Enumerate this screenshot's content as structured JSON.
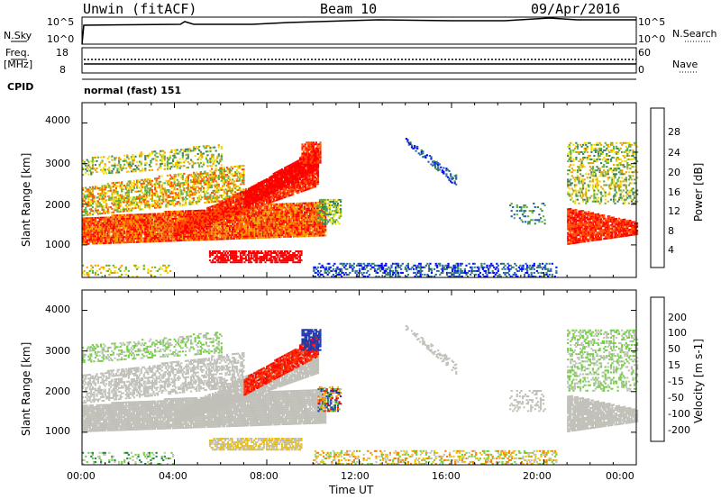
{
  "header": {
    "station": "Unwin (fitACF)",
    "beam": "Beam 10",
    "date": "09/Apr/2016"
  },
  "top_panels": {
    "nsky_label": "N.Sky",
    "nsearch_label": "N.Search",
    "nsky_ticks": [
      "10^5",
      "10^0"
    ],
    "freq_label": "Freq.",
    "freq_unit": "[MHz]",
    "freq_ticks": [
      "18",
      "8"
    ],
    "nave_label": "Nave",
    "nave_ticks": [
      "60",
      "0"
    ],
    "cpid_label": "CPID",
    "cpid_value": "normal (fast) 151"
  },
  "axes": {
    "ylabel": "Slant Range [km]",
    "xlabel": "Time UT",
    "y_ticks": [
      "4000",
      "3000",
      "2000",
      "1000"
    ],
    "x_ticks": [
      "00:00",
      "04:00",
      "08:00",
      "12:00",
      "16:00",
      "20:00",
      "00:00"
    ]
  },
  "power_scale": {
    "label": "Power [dB]",
    "ticks": [
      "28",
      "24",
      "20",
      "16",
      "12",
      "8",
      "4"
    ],
    "colors": [
      "#0000ff",
      "#1f5fb0",
      "#3a8060",
      "#5fb040",
      "#f0e000",
      "#f0a000",
      "#ff5000",
      "#ff0000"
    ]
  },
  "velocity_scale": {
    "label": "Velocity [m s-1]",
    "ticks": [
      "200",
      "100",
      "50",
      "15",
      "-15",
      "-50",
      "-100",
      "-200"
    ],
    "colors": [
      "#2030c0",
      "#2040a0",
      "#208040",
      "#70d040",
      "#c0c0b8",
      "#f0c000",
      "#f08000",
      "#ff3000",
      "#ff0000"
    ]
  },
  "chart_data": {
    "type": "heatmap",
    "xlabel": "Time UT",
    "ylabel": "Slant Range [km]",
    "xlim": [
      0,
      24
    ],
    "ylim": [
      200,
      4500
    ],
    "panels": [
      {
        "name": "Power",
        "unit": "dB",
        "range": [
          0,
          30
        ]
      },
      {
        "name": "Velocity",
        "unit": "m s-1",
        "range": [
          -250,
          250
        ]
      }
    ]
  }
}
